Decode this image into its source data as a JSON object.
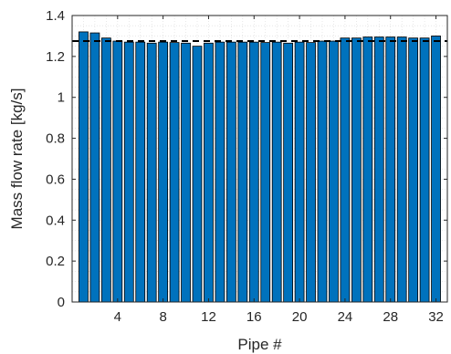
{
  "chart_data": {
    "type": "bar",
    "title": "",
    "xlabel": "Pipe #",
    "ylabel": "Mass flow rate [kg/s]",
    "ylim": [
      0,
      1.4
    ],
    "xlim": [
      0,
      33
    ],
    "yticks": [
      0,
      0.2,
      0.4,
      0.6,
      0.8,
      1,
      1.2,
      1.4
    ],
    "ytick_labels": [
      "0",
      "0.2",
      "0.4",
      "0.6",
      "0.8",
      "1",
      "1.2",
      "1.4"
    ],
    "xticks": [
      4,
      8,
      12,
      16,
      20,
      24,
      28,
      32
    ],
    "xtick_labels": [
      "4",
      "8",
      "12",
      "16",
      "20",
      "24",
      "28",
      "32"
    ],
    "grid": "minor dotted",
    "bar_color": "#0072BD",
    "categories": [
      1,
      2,
      3,
      4,
      5,
      6,
      7,
      8,
      9,
      10,
      11,
      12,
      13,
      14,
      15,
      16,
      17,
      18,
      19,
      20,
      21,
      22,
      23,
      24,
      25,
      26,
      27,
      28,
      29,
      30,
      31,
      32
    ],
    "values": [
      1.32,
      1.315,
      1.29,
      1.275,
      1.27,
      1.27,
      1.265,
      1.27,
      1.268,
      1.265,
      1.25,
      1.265,
      1.27,
      1.27,
      1.27,
      1.27,
      1.268,
      1.27,
      1.265,
      1.27,
      1.268,
      1.275,
      1.275,
      1.29,
      1.29,
      1.295,
      1.295,
      1.295,
      1.295,
      1.29,
      1.29,
      1.3
    ],
    "reference_line": {
      "y": 1.275,
      "style": "dashed",
      "color": "#000000"
    }
  }
}
